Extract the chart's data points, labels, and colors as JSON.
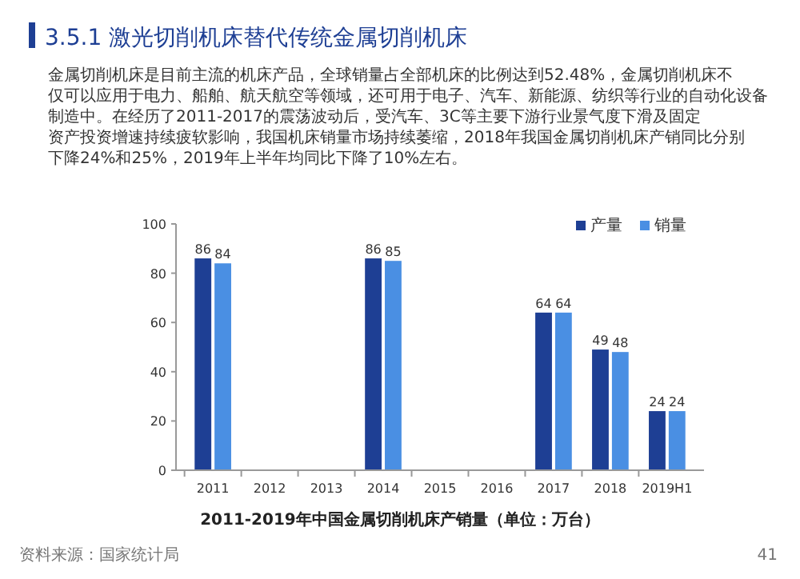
{
  "chart_data": {
    "type": "bar",
    "title": "3.5.1 激光切削机床替代传统金属切削机床",
    "subtitle": "金属切削机床是目前主流的机床产品，全球销量占全部机床的比例达到52.48%，金属切削机床不仅可以应用于电力、船舶、航天航空等领域，还可用于电子、汽车、新能源、纺织等行业的自动化设备制造中。在经历了2011-2017的震荡波动后，受汽车、3C等主要下游行业景气度下滑及固定资产投资增速持续疲软影响，我国机床销量市场持续萎缩，2018年我国金属切削机床产销同比分别下降24%和25%，2019年上半年均同比下降了10%左右。",
    "xlabel": "2011-2019年中国金属切削机床产销量（单位：万台）",
    "annotations": [
      "资料来源：国家统计局",
      "41"
    ],
    "categories": [
      "2011",
      "2012",
      "2013",
      "2014",
      "2015",
      "2016",
      "2017",
      "2018",
      "2019H1"
    ],
    "series": [
      {
        "name": "产量",
        "color": "#1e3f94",
        "values": [
          86,
          null,
          null,
          86,
          null,
          null,
          64,
          49,
          24
        ]
      },
      {
        "name": "销量",
        "color": "#4a8fe3",
        "values": [
          84,
          null,
          null,
          85,
          null,
          null,
          64,
          48,
          24
        ]
      }
    ],
    "ylim": [
      0,
      100
    ],
    "yticks": [
      0,
      20,
      40,
      60,
      80,
      100
    ],
    "data_labels": true,
    "legend": "top right",
    "grid": false
  }
}
